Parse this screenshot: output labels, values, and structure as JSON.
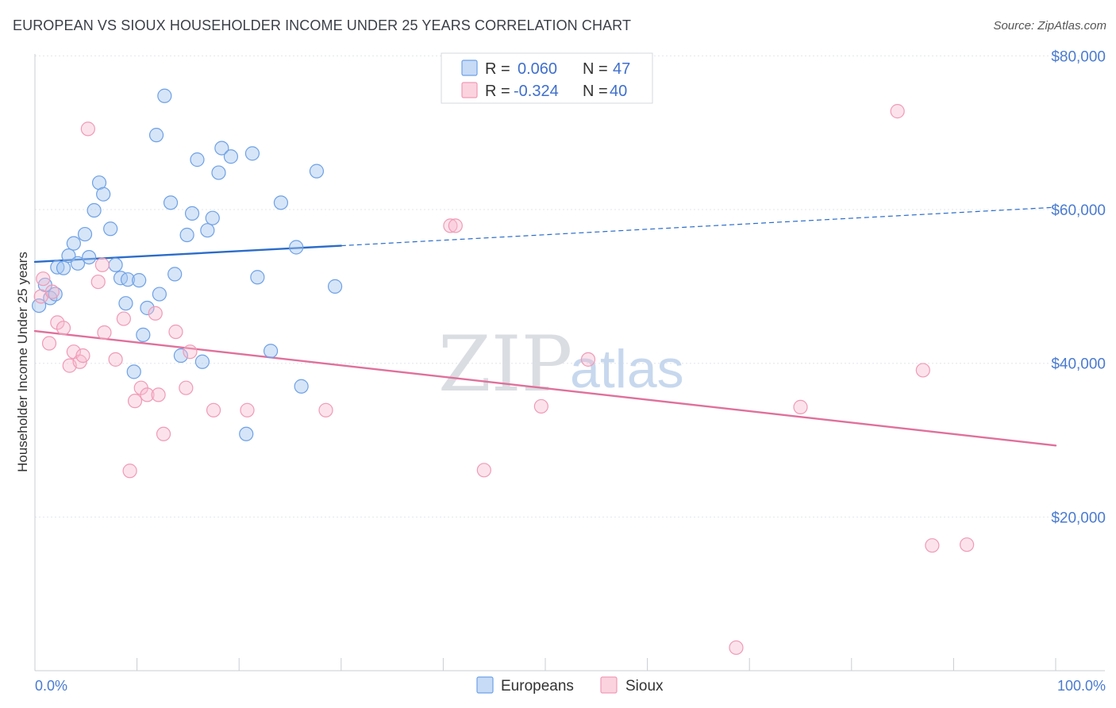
{
  "header": {
    "title": "EUROPEAN VS SIOUX HOUSEHOLDER INCOME UNDER 25 YEARS CORRELATION CHART",
    "source": "Source: ZipAtlas.com"
  },
  "watermark": {
    "zip": "ZIP",
    "atlas": "atlas"
  },
  "legend_top": {
    "rows": [
      {
        "r_label": "R =",
        "r_value": "0.060",
        "n_label": "N =",
        "n_value": "47",
        "color": "#6ea1e6"
      },
      {
        "r_label": "R =",
        "r_value": "-0.324",
        "n_label": "N =",
        "n_value": "40",
        "color": "#f09ab6"
      }
    ]
  },
  "legend_bottom": {
    "items": [
      {
        "label": "Europeans",
        "color": "#6ea1e6"
      },
      {
        "label": "Sioux",
        "color": "#f09ab6"
      }
    ]
  },
  "chart_data": {
    "type": "scatter",
    "title": "EUROPEAN VS SIOUX HOUSEHOLDER INCOME UNDER 25 YEARS CORRELATION CHART",
    "xlabel": "",
    "ylabel": "Householder Income Under 25 years",
    "xlim": [
      0,
      100
    ],
    "ylim": [
      0,
      85000
    ],
    "x_tick_labels": [
      "0.0%",
      "100.0%"
    ],
    "y_ticks": [
      20000,
      40000,
      60000,
      80000
    ],
    "y_tick_labels": [
      "$20,000",
      "$40,000",
      "$60,000",
      "$80,000"
    ],
    "grid": true,
    "series": [
      {
        "name": "Europeans",
        "color": "#6ea1e6",
        "trend_color": "#2b6cc9",
        "trend": {
          "x0": 0,
          "y0": 53200,
          "x1": 30,
          "y1": 55300,
          "dashed_to_x": 100,
          "dashed_to_y": 60300
        },
        "points": [
          [
            0.4,
            47500
          ],
          [
            1.0,
            50200
          ],
          [
            1.5,
            48500
          ],
          [
            2.0,
            49000
          ],
          [
            2.2,
            52500
          ],
          [
            2.8,
            52400
          ],
          [
            3.3,
            54000
          ],
          [
            3.8,
            55600
          ],
          [
            4.2,
            53000
          ],
          [
            4.9,
            56800
          ],
          [
            5.3,
            53800
          ],
          [
            5.8,
            59900
          ],
          [
            6.3,
            63500
          ],
          [
            6.7,
            62000
          ],
          [
            7.4,
            57500
          ],
          [
            7.9,
            52800
          ],
          [
            8.4,
            51100
          ],
          [
            8.9,
            47800
          ],
          [
            9.1,
            50900
          ],
          [
            9.7,
            38900
          ],
          [
            10.2,
            50800
          ],
          [
            10.6,
            43700
          ],
          [
            11.0,
            47200
          ],
          [
            11.9,
            69700
          ],
          [
            12.2,
            49000
          ],
          [
            12.7,
            74800
          ],
          [
            13.3,
            60900
          ],
          [
            13.7,
            51600
          ],
          [
            14.3,
            41000
          ],
          [
            14.9,
            56700
          ],
          [
            15.4,
            59500
          ],
          [
            15.9,
            66500
          ],
          [
            16.4,
            40200
          ],
          [
            16.9,
            57300
          ],
          [
            17.4,
            58900
          ],
          [
            18.0,
            64800
          ],
          [
            18.3,
            68000
          ],
          [
            19.2,
            66900
          ],
          [
            20.7,
            30800
          ],
          [
            21.3,
            67300
          ],
          [
            21.8,
            51200
          ],
          [
            23.1,
            41600
          ],
          [
            24.1,
            60900
          ],
          [
            25.6,
            55100
          ],
          [
            26.1,
            37000
          ],
          [
            27.6,
            65000
          ],
          [
            29.4,
            50000
          ]
        ]
      },
      {
        "name": "Sioux",
        "color": "#f09ab6",
        "trend_color": "#e0709a",
        "trend": {
          "x0": 0,
          "y0": 44200,
          "x1": 100,
          "y1": 29300
        },
        "points": [
          [
            0.6,
            48700
          ],
          [
            0.8,
            51000
          ],
          [
            1.4,
            42600
          ],
          [
            1.7,
            49300
          ],
          [
            2.2,
            45300
          ],
          [
            2.8,
            44600
          ],
          [
            3.4,
            39700
          ],
          [
            3.8,
            41500
          ],
          [
            4.4,
            40200
          ],
          [
            4.7,
            41000
          ],
          [
            5.2,
            70500
          ],
          [
            6.2,
            50600
          ],
          [
            6.6,
            52800
          ],
          [
            6.8,
            44000
          ],
          [
            7.9,
            40500
          ],
          [
            8.7,
            45800
          ],
          [
            9.3,
            26000
          ],
          [
            9.8,
            35100
          ],
          [
            10.4,
            36800
          ],
          [
            11.0,
            35900
          ],
          [
            11.8,
            46500
          ],
          [
            12.1,
            35900
          ],
          [
            12.6,
            30800
          ],
          [
            13.8,
            44100
          ],
          [
            14.8,
            36800
          ],
          [
            15.2,
            41500
          ],
          [
            17.5,
            33900
          ],
          [
            20.8,
            33900
          ],
          [
            28.5,
            33900
          ],
          [
            40.7,
            57900
          ],
          [
            41.2,
            57900
          ],
          [
            44.0,
            26100
          ],
          [
            49.6,
            34400
          ],
          [
            54.2,
            40500
          ],
          [
            68.7,
            3000
          ],
          [
            75.0,
            34300
          ],
          [
            84.5,
            72800
          ],
          [
            87.0,
            39100
          ],
          [
            87.9,
            16300
          ],
          [
            91.3,
            16400
          ]
        ]
      }
    ]
  }
}
